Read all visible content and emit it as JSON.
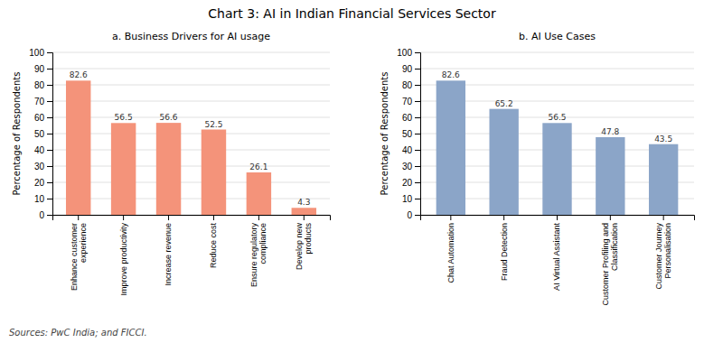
{
  "title": "Chart 3: AI in Indian Financial Services Sector",
  "annotations": [
    "Sources: PwC India; and FICCI."
  ],
  "chart_data": [
    {
      "type": "bar",
      "title": "a. Business Drivers for AI usage",
      "categories": [
        "Enhance customer\nexperience",
        "Improve productivity",
        "Increase revenue",
        "Reduce cost",
        "Ensure regulatory\ncompliance",
        "Develop new\nproducts"
      ],
      "values": [
        82.6,
        56.5,
        56.6,
        52.5,
        26.1,
        4.3
      ],
      "color": "#F4937A",
      "ylabel": "Percentage of Respondents",
      "ylim": [
        0,
        100
      ],
      "yticks": [
        0,
        10,
        20,
        30,
        40,
        50,
        60,
        70,
        80,
        90,
        100
      ],
      "grid": true,
      "data_labels": true
    },
    {
      "type": "bar",
      "title": "b. AI Use Cases",
      "categories": [
        "Chat Automation",
        "Fraud Detection",
        "AI Virtual Assistant",
        "Customer Profiling and\nClassification",
        "Customer Journey\nPersonalisation"
      ],
      "values": [
        82.6,
        65.2,
        56.5,
        47.8,
        43.5
      ],
      "color": "#8BA5C8",
      "ylabel": "Percentage of Respondents",
      "ylim": [
        0,
        100
      ],
      "yticks": [
        0,
        10,
        20,
        30,
        40,
        50,
        60,
        70,
        80,
        90,
        100
      ],
      "grid": true,
      "data_labels": true
    }
  ]
}
